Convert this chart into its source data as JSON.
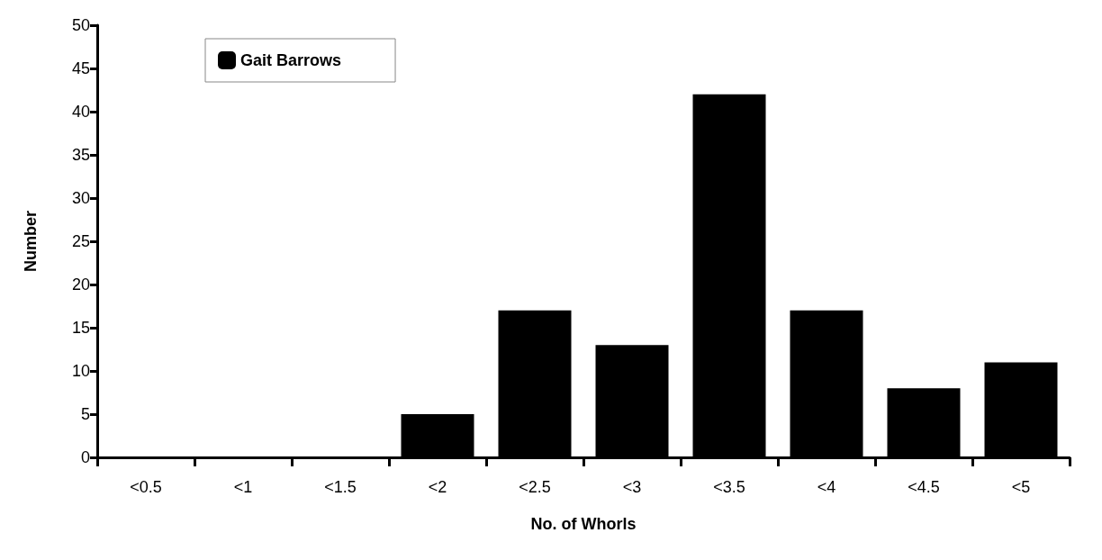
{
  "chart_data": {
    "type": "bar",
    "xlabel": "No. of Whorls",
    "ylabel": "Number",
    "categories": [
      "<0.5",
      "<1",
      "<1.5",
      "<2",
      "<2.5",
      "<3",
      "<3.5",
      "<4",
      "<4.5",
      "<5"
    ],
    "series": [
      {
        "name": "Gait Barrows",
        "color": "#000000",
        "values": [
          0,
          0,
          0,
          5,
          17,
          13,
          42,
          17,
          8,
          11
        ]
      }
    ],
    "ylim": [
      0,
      50
    ],
    "yticks": [
      0,
      5,
      10,
      15,
      20,
      25,
      30,
      35,
      40,
      45,
      50
    ],
    "grid": false,
    "legend": "top left"
  }
}
